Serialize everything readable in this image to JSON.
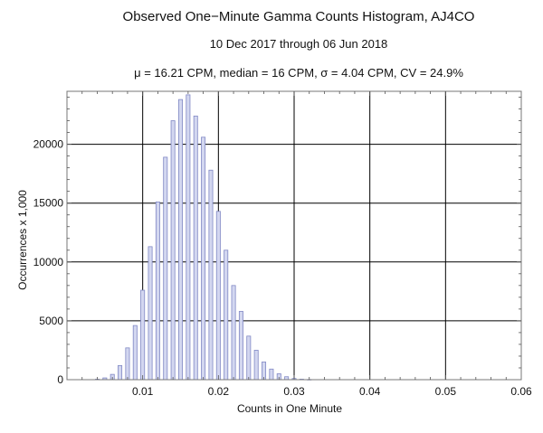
{
  "chart_data": {
    "type": "bar",
    "title": "Observed One−Minute Gamma Counts Histogram, AJ4CO",
    "subtitle": "10 Dec 2017 through 06 Jun 2018",
    "stats": "μ = 16.21 CPM,   median = 16 CPM,   σ = 4.04 CPM,   CV = 24.9%",
    "xlabel": "Counts in One Minute",
    "ylabel": "Occurrences x 1,000",
    "xlim": [
      0,
      0.06
    ],
    "ylim": [
      0,
      24500
    ],
    "xticks": [
      0.01,
      0.02,
      0.03,
      0.04,
      0.05,
      0.06
    ],
    "xtick_labels": [
      "0.01",
      "0.02",
      "0.03",
      "0.04",
      "0.05",
      "0.06"
    ],
    "yticks": [
      0,
      5000,
      10000,
      15000,
      20000
    ],
    "ytick_labels": [
      "0",
      "5000",
      "10000",
      "15000",
      "20000"
    ],
    "grid": true,
    "bar_width": 0.0005,
    "x": [
      0.004,
      0.005,
      0.006,
      0.007,
      0.008,
      0.009,
      0.01,
      0.011,
      0.012,
      0.013,
      0.014,
      0.015,
      0.016,
      0.017,
      0.018,
      0.019,
      0.02,
      0.021,
      0.022,
      0.023,
      0.024,
      0.025,
      0.026,
      0.027,
      0.028,
      0.029,
      0.03,
      0.031,
      0.032
    ],
    "values": [
      40,
      150,
      450,
      1200,
      2700,
      4600,
      7600,
      11300,
      15100,
      18900,
      22000,
      23800,
      24200,
      22400,
      20600,
      17800,
      14300,
      11000,
      8000,
      5800,
      3700,
      2500,
      1500,
      900,
      500,
      250,
      100,
      40,
      15
    ],
    "colors": {
      "bar_fill": "#d3d7f0",
      "bar_stroke": "#8088c4",
      "grid": "#000000",
      "frame": "#777777"
    }
  }
}
